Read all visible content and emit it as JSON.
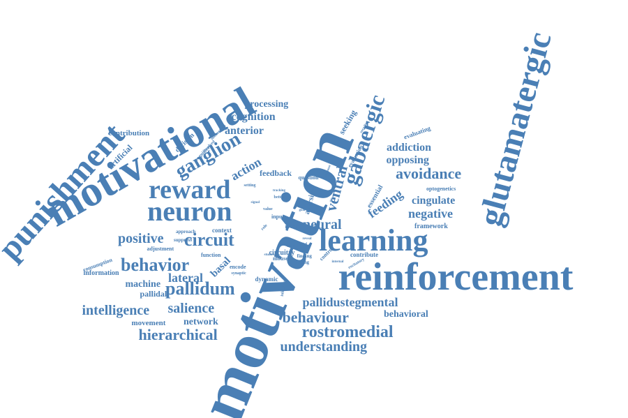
{
  "color": "#4a7fb5",
  "words": [
    {
      "text": "motivation"
    },
    {
      "text": "motivational"
    },
    {
      "text": "reinforcement"
    },
    {
      "text": "glutamatergic"
    },
    {
      "text": "punishment"
    },
    {
      "text": "learning"
    },
    {
      "text": "neuron"
    },
    {
      "text": "reward"
    },
    {
      "text": "gabaergic"
    },
    {
      "text": "ganglion"
    },
    {
      "text": "circuit"
    },
    {
      "text": "behavior"
    },
    {
      "text": "pallidum"
    },
    {
      "text": "positive"
    },
    {
      "text": "neural"
    },
    {
      "text": "avoidance"
    },
    {
      "text": "rostromedial"
    },
    {
      "text": "hierarchical"
    },
    {
      "text": "behaviour"
    },
    {
      "text": "pallidustegmental"
    },
    {
      "text": "intelligence"
    },
    {
      "text": "salience"
    },
    {
      "text": "understanding"
    },
    {
      "text": "ventral"
    },
    {
      "text": "lateral"
    },
    {
      "text": "negative"
    },
    {
      "text": "cingulate"
    },
    {
      "text": "opposing"
    },
    {
      "text": "addiction"
    },
    {
      "text": "feeding"
    },
    {
      "text": "anterior"
    },
    {
      "text": "cognition"
    },
    {
      "text": "processing"
    },
    {
      "text": "action"
    },
    {
      "text": "behavioral"
    },
    {
      "text": "network"
    },
    {
      "text": "basal"
    },
    {
      "text": "machine"
    },
    {
      "text": "pallidal"
    },
    {
      "text": "seeking"
    },
    {
      "text": "artificial"
    },
    {
      "text": "contribution"
    },
    {
      "text": "movement"
    },
    {
      "text": "feedback"
    },
    {
      "text": "information"
    },
    {
      "text": "aversive"
    },
    {
      "text": "framework"
    },
    {
      "text": "decision"
    },
    {
      "text": "circuitry"
    },
    {
      "text": "dynamic"
    },
    {
      "text": "essential"
    },
    {
      "text": "evaluating"
    },
    {
      "text": "evaluation"
    },
    {
      "text": "question"
    },
    {
      "text": "optogenetics"
    },
    {
      "text": "adjustment"
    },
    {
      "text": "consumption"
    },
    {
      "text": "contribute"
    },
    {
      "text": "context"
    },
    {
      "text": "encode"
    },
    {
      "text": "mouse"
    },
    {
      "text": "control"
    },
    {
      "text": "finding"
    },
    {
      "text": "making"
    },
    {
      "text": "input"
    },
    {
      "text": "recent"
    },
    {
      "text": "function"
    },
    {
      "text": "approach"
    },
    {
      "text": "suppress"
    },
    {
      "text": "cognitive"
    },
    {
      "text": "involved"
    },
    {
      "text": "subcortical"
    },
    {
      "text": "setting"
    },
    {
      "text": "excitatory"
    },
    {
      "text": "inhibitory"
    },
    {
      "text": "synaptic"
    },
    {
      "text": "result"
    },
    {
      "text": "better"
    },
    {
      "text": "value"
    },
    {
      "text": "goal"
    },
    {
      "text": "role"
    },
    {
      "text": "internal"
    },
    {
      "text": "response"
    },
    {
      "text": "encoding"
    },
    {
      "text": "studies"
    },
    {
      "text": "signal"
    },
    {
      "text": "tracking"
    },
    {
      "text": "reveal"
    },
    {
      "text": "critical"
    },
    {
      "text": "animal"
    }
  ]
}
